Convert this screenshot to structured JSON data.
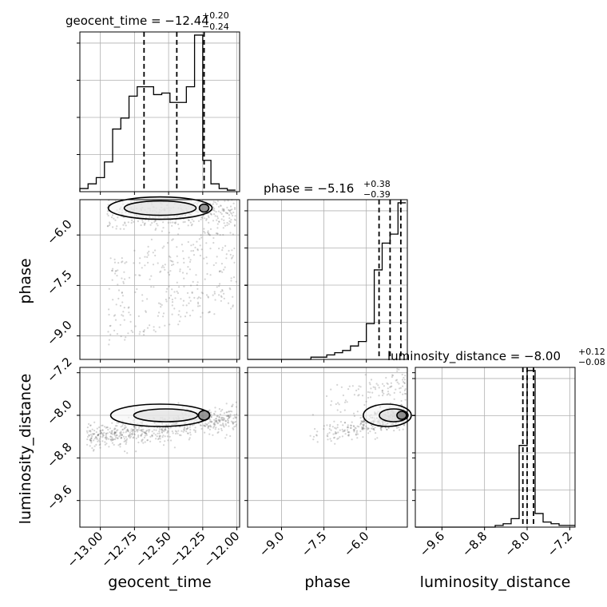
{
  "chart_data": {
    "type": "corner",
    "parameters": [
      "geocent_time",
      "phase",
      "luminosity_distance"
    ],
    "grid": true,
    "titles": [
      {
        "param": "geocent_time",
        "prefix": "geocent_time = ",
        "median": "−12.44",
        "plus": "+0.20",
        "minus": "−0.24"
      },
      {
        "param": "phase",
        "prefix": "phase = ",
        "median": "−5.16",
        "plus": "+0.38",
        "minus": "−0.39"
      },
      {
        "param": "luminosity_distance",
        "prefix": "luminosity_distance = ",
        "median": "−8.00",
        "plus": "+0.12",
        "minus": "−0.08"
      }
    ],
    "axes": {
      "geocent_time": {
        "range": [
          -13.15,
          -11.98
        ],
        "ticks": [
          -13.0,
          -12.75,
          -12.5,
          -12.25,
          -12.0
        ],
        "tick_labels": [
          "−13.00",
          "−12.75",
          "−12.50",
          "−12.25",
          "−12.00"
        ]
      },
      "phase": {
        "range": [
          -10.2,
          -4.55
        ],
        "ticks": [
          -9.0,
          -7.5,
          -6.0
        ],
        "tick_labels": [
          "−9.0",
          "−7.5",
          "−6.0"
        ]
      },
      "luminosity_distance": {
        "range": [
          -10.1,
          -7.1
        ],
        "ticks": [
          -9.6,
          -8.8,
          -8.0,
          -7.2
        ],
        "tick_labels": [
          "−9.6",
          "−8.8",
          "−8.0",
          "−7.2"
        ]
      }
    },
    "phase_y_axis": {
      "range": [
        -9.7,
        -4.95
      ],
      "ticks": [
        -9.0,
        -7.5,
        -6.0
      ],
      "tick_labels": [
        "−9.0",
        "−7.5",
        "−6.0"
      ]
    },
    "histograms": {
      "geocent_time": {
        "edges": [
          -13.15,
          -13.09,
          -13.03,
          -12.97,
          -12.91,
          -12.85,
          -12.79,
          -12.73,
          -12.67,
          -12.61,
          -12.55,
          -12.49,
          -12.43,
          -12.37,
          -12.31,
          -12.25,
          -12.19,
          -12.13,
          -12.07,
          -12.01
        ],
        "counts": [
          2,
          5,
          9,
          19,
          40,
          47,
          61,
          67,
          67,
          62,
          63,
          57,
          57,
          67,
          100,
          20,
          5,
          2,
          1
        ],
        "quantiles": [
          -12.68,
          -12.44,
          -12.24
        ]
      },
      "phase": {
        "edges": [
          -10.2,
          -9.92,
          -9.64,
          -9.36,
          -9.08,
          -8.8,
          -8.52,
          -8.24,
          -7.96,
          -7.68,
          -7.4,
          -7.12,
          -6.84,
          -6.56,
          -6.28,
          -6.0,
          -5.72,
          -5.44,
          -5.16,
          -4.88,
          -4.6
        ],
        "counts": [
          0,
          0,
          0,
          0,
          0,
          0,
          0,
          0,
          1,
          1,
          2,
          3,
          4,
          6,
          8,
          16,
          40,
          52,
          56,
          70
        ],
        "quantiles": [
          -5.55,
          -5.16,
          -4.78
        ]
      },
      "luminosity_distance": {
        "edges": [
          -10.1,
          -9.95,
          -9.8,
          -9.65,
          -9.5,
          -9.35,
          -9.2,
          -9.05,
          -8.9,
          -8.75,
          -8.6,
          -8.45,
          -8.3,
          -8.15,
          -8.0,
          -7.85,
          -7.7,
          -7.55,
          -7.4,
          -7.25,
          -7.1
        ],
        "counts": [
          0,
          0,
          0,
          0,
          0,
          0,
          0,
          0,
          0,
          0,
          1,
          2,
          5,
          48,
          92,
          8,
          3,
          2,
          1,
          1
        ],
        "quantiles": [
          -8.08,
          -8.0,
          -7.88
        ]
      }
    },
    "contours": {
      "geocent_time_vs_phase": {
        "center": [
          -12.24,
          -5.2
        ],
        "levels": 3
      },
      "geocent_time_vs_luminosity_distance": {
        "center": [
          -12.24,
          -8.0
        ],
        "levels": 3
      },
      "phase_vs_luminosity_distance": {
        "center": [
          -4.75,
          -8.0
        ],
        "levels": 3
      }
    }
  }
}
